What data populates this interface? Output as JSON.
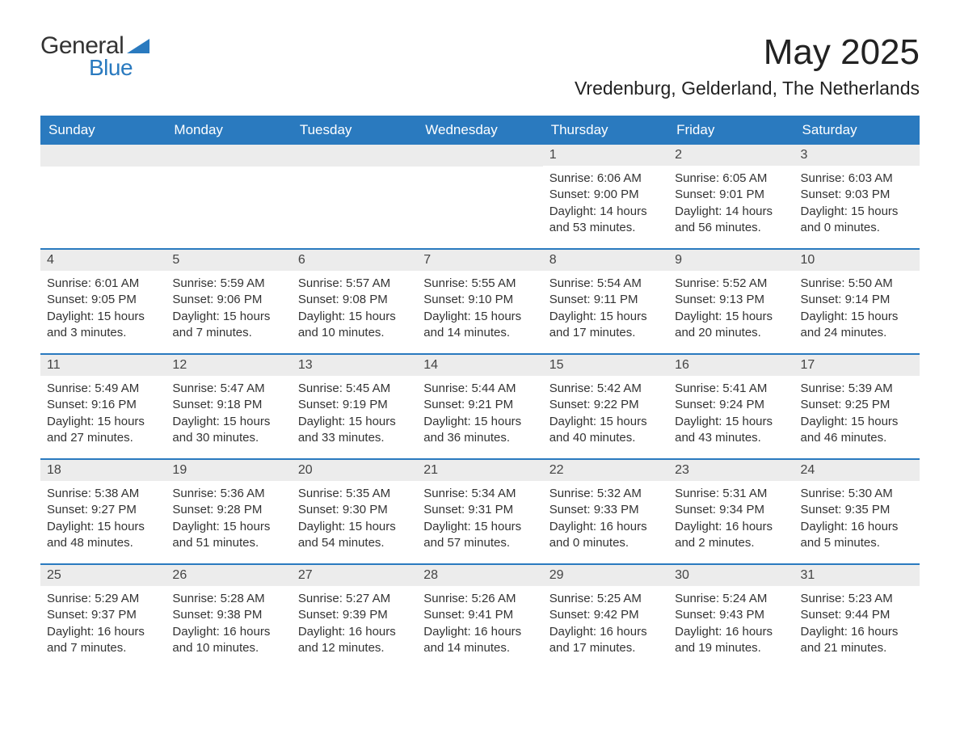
{
  "logo": {
    "text_general": "General",
    "text_blue": "Blue",
    "triangle_color": "#2a7abf"
  },
  "title": "May 2025",
  "location": "Vredenburg, Gelderland, The Netherlands",
  "colors": {
    "header_bg": "#2a7abf",
    "header_text": "#ffffff",
    "daynum_bg": "#ececec",
    "week_border": "#2a7abf",
    "body_text": "#333333"
  },
  "weekdays": [
    "Sunday",
    "Monday",
    "Tuesday",
    "Wednesday",
    "Thursday",
    "Friday",
    "Saturday"
  ],
  "weeks": [
    [
      {
        "empty": true
      },
      {
        "empty": true
      },
      {
        "empty": true
      },
      {
        "empty": true
      },
      {
        "day": "1",
        "sunrise": "6:06 AM",
        "sunset": "9:00 PM",
        "daylight": "14 hours and 53 minutes."
      },
      {
        "day": "2",
        "sunrise": "6:05 AM",
        "sunset": "9:01 PM",
        "daylight": "14 hours and 56 minutes."
      },
      {
        "day": "3",
        "sunrise": "6:03 AM",
        "sunset": "9:03 PM",
        "daylight": "15 hours and 0 minutes."
      }
    ],
    [
      {
        "day": "4",
        "sunrise": "6:01 AM",
        "sunset": "9:05 PM",
        "daylight": "15 hours and 3 minutes."
      },
      {
        "day": "5",
        "sunrise": "5:59 AM",
        "sunset": "9:06 PM",
        "daylight": "15 hours and 7 minutes."
      },
      {
        "day": "6",
        "sunrise": "5:57 AM",
        "sunset": "9:08 PM",
        "daylight": "15 hours and 10 minutes."
      },
      {
        "day": "7",
        "sunrise": "5:55 AM",
        "sunset": "9:10 PM",
        "daylight": "15 hours and 14 minutes."
      },
      {
        "day": "8",
        "sunrise": "5:54 AM",
        "sunset": "9:11 PM",
        "daylight": "15 hours and 17 minutes."
      },
      {
        "day": "9",
        "sunrise": "5:52 AM",
        "sunset": "9:13 PM",
        "daylight": "15 hours and 20 minutes."
      },
      {
        "day": "10",
        "sunrise": "5:50 AM",
        "sunset": "9:14 PM",
        "daylight": "15 hours and 24 minutes."
      }
    ],
    [
      {
        "day": "11",
        "sunrise": "5:49 AM",
        "sunset": "9:16 PM",
        "daylight": "15 hours and 27 minutes."
      },
      {
        "day": "12",
        "sunrise": "5:47 AM",
        "sunset": "9:18 PM",
        "daylight": "15 hours and 30 minutes."
      },
      {
        "day": "13",
        "sunrise": "5:45 AM",
        "sunset": "9:19 PM",
        "daylight": "15 hours and 33 minutes."
      },
      {
        "day": "14",
        "sunrise": "5:44 AM",
        "sunset": "9:21 PM",
        "daylight": "15 hours and 36 minutes."
      },
      {
        "day": "15",
        "sunrise": "5:42 AM",
        "sunset": "9:22 PM",
        "daylight": "15 hours and 40 minutes."
      },
      {
        "day": "16",
        "sunrise": "5:41 AM",
        "sunset": "9:24 PM",
        "daylight": "15 hours and 43 minutes."
      },
      {
        "day": "17",
        "sunrise": "5:39 AM",
        "sunset": "9:25 PM",
        "daylight": "15 hours and 46 minutes."
      }
    ],
    [
      {
        "day": "18",
        "sunrise": "5:38 AM",
        "sunset": "9:27 PM",
        "daylight": "15 hours and 48 minutes."
      },
      {
        "day": "19",
        "sunrise": "5:36 AM",
        "sunset": "9:28 PM",
        "daylight": "15 hours and 51 minutes."
      },
      {
        "day": "20",
        "sunrise": "5:35 AM",
        "sunset": "9:30 PM",
        "daylight": "15 hours and 54 minutes."
      },
      {
        "day": "21",
        "sunrise": "5:34 AM",
        "sunset": "9:31 PM",
        "daylight": "15 hours and 57 minutes."
      },
      {
        "day": "22",
        "sunrise": "5:32 AM",
        "sunset": "9:33 PM",
        "daylight": "16 hours and 0 minutes."
      },
      {
        "day": "23",
        "sunrise": "5:31 AM",
        "sunset": "9:34 PM",
        "daylight": "16 hours and 2 minutes."
      },
      {
        "day": "24",
        "sunrise": "5:30 AM",
        "sunset": "9:35 PM",
        "daylight": "16 hours and 5 minutes."
      }
    ],
    [
      {
        "day": "25",
        "sunrise": "5:29 AM",
        "sunset": "9:37 PM",
        "daylight": "16 hours and 7 minutes."
      },
      {
        "day": "26",
        "sunrise": "5:28 AM",
        "sunset": "9:38 PM",
        "daylight": "16 hours and 10 minutes."
      },
      {
        "day": "27",
        "sunrise": "5:27 AM",
        "sunset": "9:39 PM",
        "daylight": "16 hours and 12 minutes."
      },
      {
        "day": "28",
        "sunrise": "5:26 AM",
        "sunset": "9:41 PM",
        "daylight": "16 hours and 14 minutes."
      },
      {
        "day": "29",
        "sunrise": "5:25 AM",
        "sunset": "9:42 PM",
        "daylight": "16 hours and 17 minutes."
      },
      {
        "day": "30",
        "sunrise": "5:24 AM",
        "sunset": "9:43 PM",
        "daylight": "16 hours and 19 minutes."
      },
      {
        "day": "31",
        "sunrise": "5:23 AM",
        "sunset": "9:44 PM",
        "daylight": "16 hours and 21 minutes."
      }
    ]
  ],
  "labels": {
    "sunrise": "Sunrise:",
    "sunset": "Sunset:",
    "daylight": "Daylight:"
  }
}
